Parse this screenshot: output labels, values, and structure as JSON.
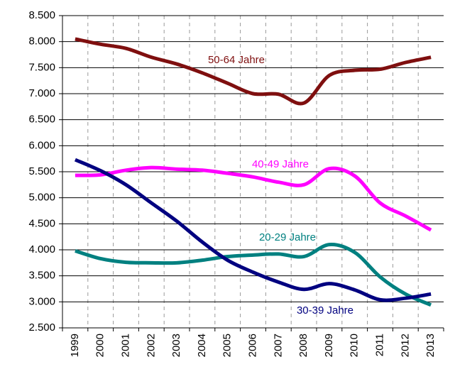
{
  "chart_data": {
    "type": "line",
    "categories": [
      "1999",
      "2000",
      "2001",
      "2002",
      "2003",
      "2004",
      "2005",
      "2006",
      "2007",
      "2008",
      "2009",
      "2010",
      "2011",
      "2012",
      "2013"
    ],
    "series": [
      {
        "name": "50-64 Jahre",
        "color": "#7f0f0f",
        "values": [
          8050,
          7950,
          7870,
          7700,
          7570,
          7400,
          7200,
          7000,
          6990,
          6820,
          7350,
          7450,
          7470,
          7600,
          7700
        ]
      },
      {
        "name": "40-49 Jahre",
        "color": "#ff00ff",
        "values": [
          5430,
          5440,
          5530,
          5580,
          5550,
          5530,
          5470,
          5400,
          5300,
          5250,
          5560,
          5420,
          4900,
          4650,
          4380
        ]
      },
      {
        "name": "20-29 Jahre",
        "color": "#008080",
        "values": [
          3980,
          3830,
          3760,
          3750,
          3750,
          3800,
          3870,
          3900,
          3920,
          3870,
          4100,
          3950,
          3480,
          3150,
          2940
        ]
      },
      {
        "name": "30-39 Jahre",
        "color": "#000080",
        "values": [
          5730,
          5520,
          5250,
          4900,
          4550,
          4150,
          3800,
          3570,
          3380,
          3240,
          3350,
          3230,
          3040,
          3070,
          3150
        ]
      }
    ],
    "ylim": [
      2500,
      8500
    ],
    "yticks": [
      {
        "value": 2500,
        "label": "2.500"
      },
      {
        "value": 3000,
        "label": "3.000"
      },
      {
        "value": 3500,
        "label": "3.500"
      },
      {
        "value": 4000,
        "label": "4.000"
      },
      {
        "value": 4500,
        "label": "4.500"
      },
      {
        "value": 5000,
        "label": "5.000"
      },
      {
        "value": 5500,
        "label": "5.500"
      },
      {
        "value": 6000,
        "label": "6.000"
      },
      {
        "value": 6500,
        "label": "6.500"
      },
      {
        "value": 7000,
        "label": "7.000"
      },
      {
        "value": 7500,
        "label": "7.500"
      },
      {
        "value": 8000,
        "label": "8.000"
      },
      {
        "value": 8500,
        "label": "8.500"
      }
    ],
    "grid": true
  }
}
